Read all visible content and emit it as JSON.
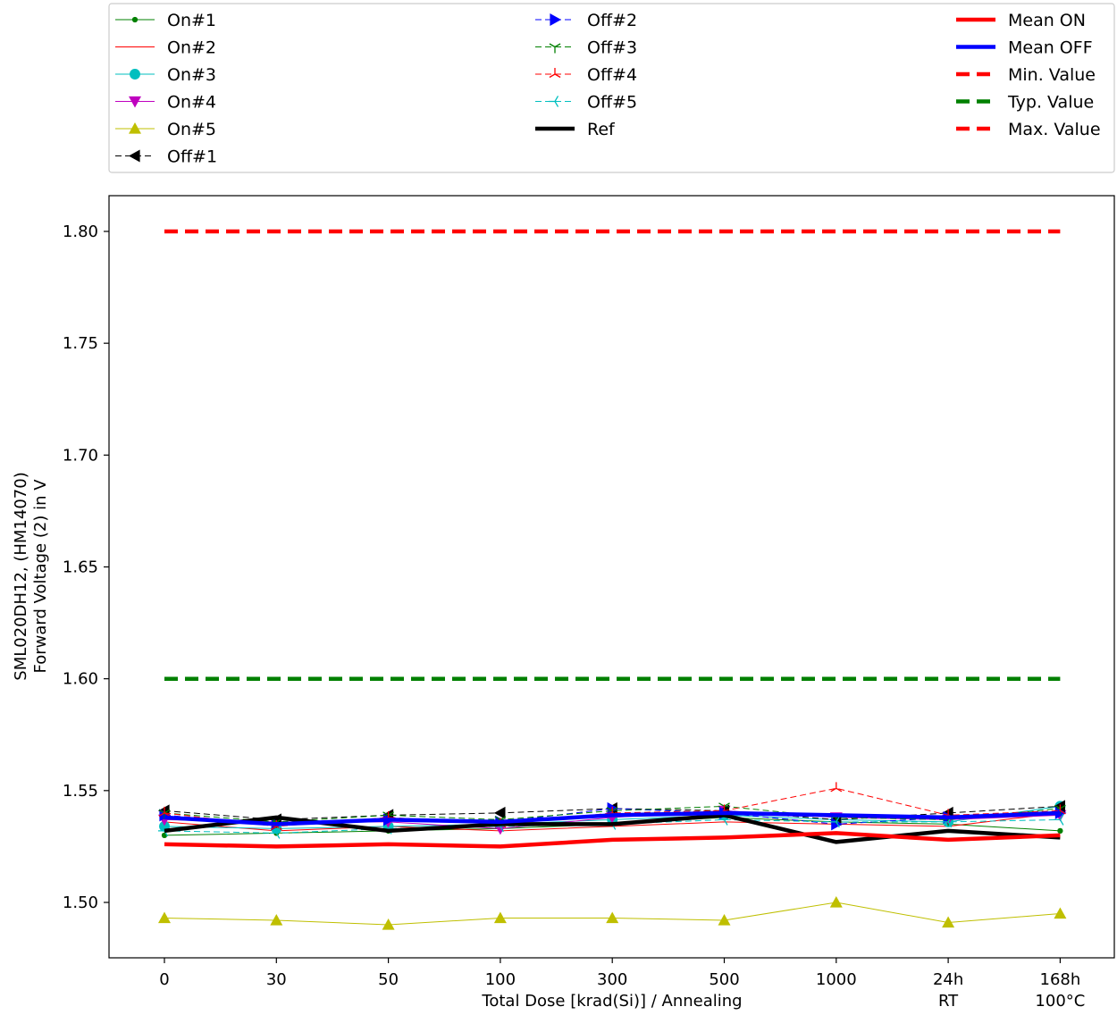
{
  "chart_data": {
    "type": "line",
    "title": "",
    "xlabel": "Total Dose [krad(Si)] / Annealing",
    "ylabel_line1": "SML020DH12, (HM14070)",
    "ylabel_line2": "Forward Voltage (2) in V",
    "categories": [
      {
        "line1": "0",
        "line2": ""
      },
      {
        "line1": "30",
        "line2": ""
      },
      {
        "line1": "50",
        "line2": ""
      },
      {
        "line1": "100",
        "line2": ""
      },
      {
        "line1": "300",
        "line2": ""
      },
      {
        "line1": "500",
        "line2": ""
      },
      {
        "line1": "1000",
        "line2": ""
      },
      {
        "line1": "24h",
        "line2": "RT"
      },
      {
        "line1": "168h",
        "line2": "100°C"
      }
    ],
    "ylim": [
      1.475,
      1.815
    ],
    "yticks": [
      "1.50",
      "1.55",
      "1.60",
      "1.65",
      "1.70",
      "1.75",
      "1.80"
    ],
    "grid": false,
    "legend_placement": "top (outside plot, 3 columns)",
    "series": [
      {
        "name": "On#1",
        "color": "#008000",
        "marker": "dot",
        "dash": "solid",
        "width": 1,
        "values": [
          1.53,
          1.531,
          1.532,
          1.533,
          1.535,
          1.538,
          1.536,
          1.535,
          1.532
        ]
      },
      {
        "name": "On#2",
        "color": "#ff0000",
        "marker": "none",
        "dash": "solid",
        "width": 1,
        "values": [
          1.536,
          1.532,
          1.534,
          1.532,
          1.534,
          1.536,
          1.535,
          1.534,
          1.54
        ]
      },
      {
        "name": "On#3",
        "color": "#00bfbf",
        "marker": "circle",
        "dash": "solid",
        "width": 1,
        "values": [
          1.534,
          1.533,
          1.534,
          1.535,
          1.537,
          1.539,
          1.537,
          1.536,
          1.543
        ]
      },
      {
        "name": "On#4",
        "color": "#bf00bf",
        "marker": "triangle-down",
        "dash": "solid",
        "width": 1,
        "values": [
          1.537,
          1.536,
          1.536,
          1.533,
          1.538,
          1.541,
          1.538,
          1.537,
          1.539
        ]
      },
      {
        "name": "On#5",
        "color": "#bfbf00",
        "marker": "triangle-up",
        "dash": "solid",
        "width": 1,
        "values": [
          1.493,
          1.492,
          1.49,
          1.493,
          1.493,
          1.492,
          1.5,
          1.491,
          1.495
        ]
      },
      {
        "name": "Off#1",
        "color": "#000000",
        "marker": "triangle-left",
        "dash": "dashed",
        "width": 1,
        "values": [
          1.541,
          1.537,
          1.539,
          1.54,
          1.542,
          1.541,
          1.537,
          1.54,
          1.543
        ]
      },
      {
        "name": "Off#2",
        "color": "#0000ff",
        "marker": "triangle-right",
        "dash": "dashed",
        "width": 1,
        "values": [
          1.539,
          1.535,
          1.537,
          1.536,
          1.542,
          1.54,
          1.535,
          1.538,
          1.54
        ]
      },
      {
        "name": "Off#3",
        "color": "#008000",
        "marker": "tri-down",
        "dash": "dashed",
        "width": 1,
        "values": [
          1.54,
          1.536,
          1.539,
          1.537,
          1.541,
          1.543,
          1.538,
          1.537,
          1.542
        ]
      },
      {
        "name": "Off#4",
        "color": "#ff0000",
        "marker": "tri-up",
        "dash": "dashed",
        "width": 1,
        "values": [
          1.54,
          1.534,
          1.538,
          1.535,
          1.54,
          1.541,
          1.551,
          1.539,
          1.541
        ]
      },
      {
        "name": "Off#5",
        "color": "#00bfbf",
        "marker": "tri-left",
        "dash": "dashed",
        "width": 1,
        "values": [
          1.532,
          1.531,
          1.533,
          1.534,
          1.535,
          1.537,
          1.536,
          1.536,
          1.537
        ]
      },
      {
        "name": "Ref",
        "color": "#000000",
        "marker": "none",
        "dash": "solid",
        "width": 4.5,
        "values": [
          1.532,
          1.538,
          1.532,
          1.535,
          1.535,
          1.539,
          1.527,
          1.532,
          1.529
        ]
      },
      {
        "name": "Mean ON",
        "color": "#ff0000",
        "marker": "none",
        "dash": "solid",
        "width": 4.5,
        "values": [
          1.526,
          1.525,
          1.526,
          1.525,
          1.528,
          1.529,
          1.531,
          1.528,
          1.53
        ]
      },
      {
        "name": "Mean OFF",
        "color": "#0000ff",
        "marker": "none",
        "dash": "solid",
        "width": 4.5,
        "values": [
          1.538,
          1.535,
          1.537,
          1.536,
          1.539,
          1.54,
          1.539,
          1.538,
          1.54
        ]
      },
      {
        "name": "Min. Value",
        "color": "#ff0000",
        "marker": "none",
        "dash": "thick-dashed",
        "width": 4.5,
        "values": [
          null,
          null,
          null,
          null,
          null,
          null,
          null,
          null,
          null
        ]
      },
      {
        "name": "Typ. Value",
        "color": "#008000",
        "marker": "none",
        "dash": "thick-dashed",
        "width": 4.5,
        "values": [
          1.6,
          1.6,
          1.6,
          1.6,
          1.6,
          1.6,
          1.6,
          1.6,
          1.6
        ]
      },
      {
        "name": "Max. Value",
        "color": "#ff0000",
        "marker": "none",
        "dash": "thick-dashed",
        "width": 4.5,
        "values": [
          1.8,
          1.8,
          1.8,
          1.8,
          1.8,
          1.8,
          1.8,
          1.8,
          1.8
        ]
      }
    ],
    "legend_columns": [
      [
        "On#1",
        "On#2",
        "On#3",
        "On#4",
        "On#5",
        "Off#1"
      ],
      [
        "Off#2",
        "Off#3",
        "Off#4",
        "Off#5",
        "Ref"
      ],
      [
        "Mean ON",
        "Mean OFF",
        "Min. Value",
        "Typ. Value",
        "Max. Value"
      ]
    ]
  }
}
